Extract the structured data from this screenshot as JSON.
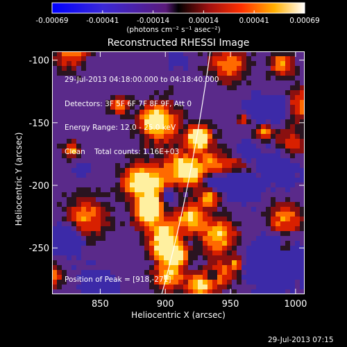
{
  "colorbar": {
    "ticks": [
      "-0.00069",
      "-0.00041",
      "-0.00014",
      "0.00014",
      "0.00041",
      "0.00069"
    ],
    "unit_label": "(photons cm⁻² s⁻¹ asec⁻²)"
  },
  "title": "Reconstructed RHESSI Image",
  "info": {
    "line1": "29-Jul-2013 04:18:00.000 to 04:18:40.000",
    "line2": "Detectors: 3F 5F 6F 7F 8F 9F, Att 0",
    "line3": "Energy Range: 12.0 - 25.0 keV",
    "line4": "Clean    Total counts: 1.16E+03",
    "peak": "Position of Peak = [918,-271]"
  },
  "axes": {
    "xlabel": "Heliocentric X (arcsec)",
    "ylabel": "Heliocentric Y (arcsec)",
    "xticks": [
      "850",
      "900",
      "950",
      "1000"
    ],
    "yticks": [
      "-100",
      "-150",
      "-200",
      "-250"
    ],
    "xlim": [
      813,
      1007
    ],
    "ylim": [
      -287,
      -93
    ]
  },
  "footer": {
    "timestamp": "29-Jul-2013 07:15"
  }
}
